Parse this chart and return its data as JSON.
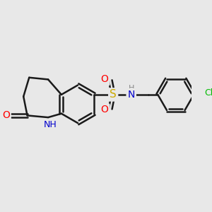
{
  "background_color": "#e8e8e8",
  "bond_color": "#1a1a1a",
  "bond_width": 1.8,
  "atom_colors": {
    "O": "#ff0000",
    "N": "#0000cc",
    "S": "#ccaa00",
    "Cl": "#00bb00",
    "C": "#1a1a1a",
    "H": "#888888"
  },
  "font_size": 9,
  "figsize": [
    3.0,
    3.0
  ],
  "dpi": 100
}
